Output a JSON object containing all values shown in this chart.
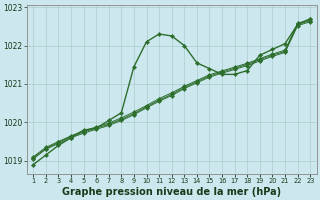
{
  "xlabel": "Graphe pression niveau de la mer (hPa)",
  "background_color": "#cce8ee",
  "grid_color": "#aacccc",
  "line_color": "#2d6e2d",
  "hours": [
    1,
    2,
    3,
    4,
    5,
    6,
    7,
    8,
    9,
    10,
    11,
    12,
    13,
    14,
    15,
    16,
    17,
    18,
    19,
    20,
    21,
    22,
    23
  ],
  "series": [
    [
      1018.9,
      1019.15,
      1019.4,
      1019.6,
      1019.8,
      1019.85,
      1020.05,
      1020.25,
      1021.45,
      1022.1,
      1022.3,
      1022.25,
      1022.0,
      1021.55,
      1021.4,
      1021.25,
      1021.25,
      1021.35,
      1021.75,
      1021.9,
      1022.05,
      1022.55,
      1022.7
    ],
    [
      1019.05,
      1019.3,
      1019.45,
      1019.6,
      1019.72,
      1019.82,
      1019.92,
      1020.05,
      1020.2,
      1020.38,
      1020.55,
      1020.7,
      1020.88,
      1021.03,
      1021.18,
      1021.28,
      1021.38,
      1021.48,
      1021.6,
      1021.72,
      1021.82,
      1022.52,
      1022.62
    ],
    [
      1019.08,
      1019.32,
      1019.48,
      1019.63,
      1019.75,
      1019.85,
      1019.95,
      1020.08,
      1020.23,
      1020.41,
      1020.58,
      1020.73,
      1020.91,
      1021.06,
      1021.21,
      1021.31,
      1021.41,
      1021.51,
      1021.63,
      1021.75,
      1021.85,
      1022.55,
      1022.65
    ],
    [
      1019.1,
      1019.35,
      1019.5,
      1019.65,
      1019.78,
      1019.88,
      1019.98,
      1020.12,
      1020.27,
      1020.44,
      1020.62,
      1020.77,
      1020.94,
      1021.09,
      1021.24,
      1021.34,
      1021.44,
      1021.54,
      1021.66,
      1021.78,
      1021.88,
      1022.58,
      1022.68
    ]
  ],
  "ylim": [
    1018.65,
    1023.05
  ],
  "yticks": [
    1019,
    1020,
    1021,
    1022,
    1023
  ],
  "xtick_fontsize": 4.8,
  "ytick_fontsize": 5.5,
  "xlabel_fontsize": 7,
  "markersize": 2.2,
  "linewidth_main": 1.0,
  "linewidth_other": 0.7
}
